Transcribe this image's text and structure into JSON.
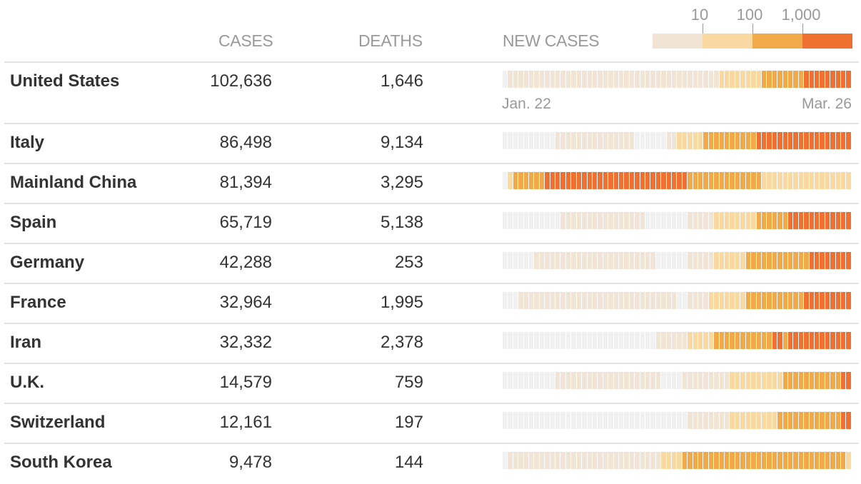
{
  "headers": {
    "cases": "CASES",
    "deaths": "DEATHS",
    "new_cases": "NEW CASES"
  },
  "legend": {
    "ticks": [
      "10",
      "100",
      "1,000"
    ],
    "colors": [
      "#f2e4d4",
      "#fad8a2",
      "#f2a94a",
      "#ef7030"
    ]
  },
  "level_colors": [
    "#f1f1f1",
    "#f2e4d4",
    "#fad8a2",
    "#f2a94a",
    "#ef7030"
  ],
  "dates": {
    "start": "Jan. 22",
    "end": "Mar. 26"
  },
  "rows": [
    {
      "country": "United States",
      "cases": "102,636",
      "deaths": "1,646",
      "levels": "011111111111111111111111111111111111111112222222233333333444444444"
    },
    {
      "country": "Italy",
      "cases": "86,498",
      "deaths": "9,134",
      "levels": "000000000011111111111111100000011222223333333333444444444444444444"
    },
    {
      "country": "Mainland China",
      "cases": "81,394",
      "deaths": "3,295",
      "levels": "023333334444444444444444444444444443333333333333322222222222222222"
    },
    {
      "country": "Spain",
      "cases": "65,719",
      "deaths": "5,138",
      "levels": "000000000001111111111111111000000001111122222222333333444444444444"
    },
    {
      "country": "Germany",
      "cases": "42,288",
      "deaths": "253",
      "levels": "000000111111111111111111111110000001111122222233333333333344444444"
    },
    {
      "country": "France",
      "cases": "32,964",
      "deaths": "1,995",
      "levels": "000111111111111111111111111111111001111222222233333333333444444444"
    },
    {
      "country": "Iran",
      "cases": "32,332",
      "deaths": "2,378",
      "levels": "000000000000000000000000000001111112222233333333333443444444444444"
    },
    {
      "country": "U.K.",
      "cases": "14,579",
      "deaths": "759",
      "levels": "000000000011111111111111111111000011111111122222222223333333333344"
    },
    {
      "country": "Switzerland",
      "cases": "12,161",
      "deaths": "197",
      "levels": "000000000000000000000000000000000001111111122222222233333333333344"
    },
    {
      "country": "South Korea",
      "cases": "9,478",
      "deaths": "144",
      "levels": "011111111111111111111111111111222233333333333333333333333333333332"
    }
  ]
}
